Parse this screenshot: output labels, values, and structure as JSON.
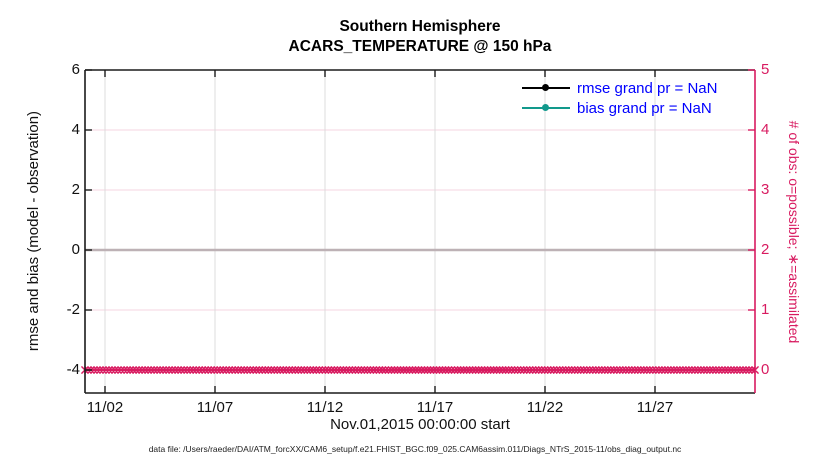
{
  "figure": {
    "title_line1": "Southern Hemisphere",
    "title_line2": "ACARS_TEMPERATURE @ 150 hPa",
    "xlabel": "Nov.01,2015 00:00:00 start",
    "footer": "data file: /Users/raeder/DAI/ATM_forcXX/CAM6_setup/f.e21.FHIST_BGC.f09_025.CAM6assim.011/Diags_NTrS_2015-11/obs_diag_output.nc"
  },
  "legend": {
    "text_color": "#0000FF",
    "items": [
      {
        "label": "rmse grand pr = NaN",
        "line_color": "#000000",
        "marker": "circle"
      },
      {
        "label": "bias grand pr = NaN",
        "line_color": "#12998C",
        "marker": "circle"
      }
    ]
  },
  "axes": {
    "left": {
      "label": "rmse and bias (model - observation)",
      "ticks": [
        "6",
        "4",
        "2",
        "0",
        "-2",
        "-4"
      ]
    },
    "right": {
      "label": "# of obs: o=possible; ∗=assimilated",
      "ticks": [
        "5",
        "4",
        "3",
        "2",
        "1",
        "0"
      ]
    },
    "x": {
      "ticks": [
        "11/02",
        "11/07",
        "11/12",
        "11/17",
        "11/22",
        "11/27"
      ]
    }
  },
  "colors": {
    "crimson": "#D81B60",
    "teal": "#12998C",
    "legend_text": "#0000FF",
    "zero_line": "#BDB1B5",
    "grid_gray": "#DCDCDC",
    "grid_pink": "#F6D5E2",
    "frame": "#1A1A1A"
  },
  "chart_data": {
    "type": "line",
    "title": "Southern Hemisphere",
    "subtitle": "ACARS_TEMPERATURE @ 150 hPa",
    "xlabel": "Nov.01,2015 00:00:00 start",
    "x_tick_labels": [
      "11/02",
      "11/07",
      "11/12",
      "11/17",
      "11/22",
      "11/27"
    ],
    "x_range_days": [
      "Nov 1 2015",
      "Dec 1 2015"
    ],
    "left_axis": {
      "label": "rmse and bias (model - observation)",
      "ticks": [
        6,
        4,
        2,
        0,
        -2,
        -4
      ],
      "lim": [
        -4.8,
        6
      ]
    },
    "right_axis": {
      "label": "# of obs: o=possible; ∗=assimilated",
      "ticks": [
        5,
        4,
        3,
        2,
        1,
        0
      ],
      "lim": [
        -0.4,
        5
      ]
    },
    "grid": {
      "vertical_gray_at_x_ticks": true,
      "horizontal_pink_at_right_ticks": [
        1,
        2,
        3,
        4
      ]
    },
    "zero_line": {
      "y_left_value": 0
    },
    "series": [
      {
        "name": "rmse grand pr",
        "value": "NaN",
        "plotted": false,
        "color": "#000000",
        "marker": "circle"
      },
      {
        "name": "bias grand pr",
        "value": "NaN",
        "plotted": false,
        "color": "#12998C",
        "marker": "circle"
      },
      {
        "name": "# of obs (possible and assimilated)",
        "axis": "right",
        "constant_value": 0,
        "n_points": 224,
        "marker": "x",
        "color": "#D81B60"
      }
    ]
  }
}
